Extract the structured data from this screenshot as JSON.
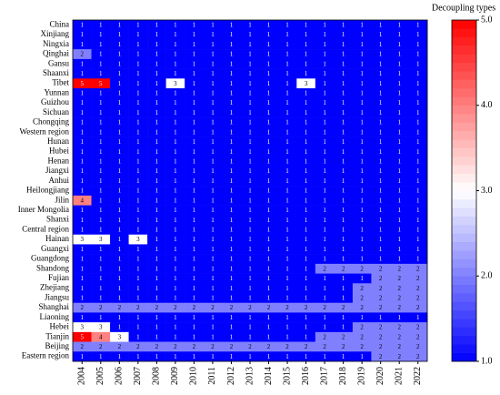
{
  "chart_data": {
    "type": "heatmap",
    "rows": [
      "China",
      "Xinjiang",
      "Ningxia",
      "Qinghai",
      "Gansu",
      "Shaanxi",
      "Tibet",
      "Yunnan",
      "Guizhou",
      "Sichuan",
      "Chongqing",
      "Western region",
      "Hunan",
      "Hubei",
      "Henan",
      "Jiangxi",
      "Anhui",
      "Heilongjiang",
      "Jilin",
      "Inner Mongolia",
      "Shanxi",
      "Central region",
      "Hainan",
      "Guangxi",
      "Guangdong",
      "Shandong",
      "Fujian",
      "Zhejiang",
      "Jiangsu",
      "Shanghai",
      "Liaoning",
      "Hebei",
      "Tianjin",
      "Beijing",
      "Eastern region"
    ],
    "columns": [
      "2004",
      "2005",
      "2006",
      "2007",
      "2008",
      "2009",
      "2010",
      "2011",
      "2012",
      "2013",
      "2014",
      "2015",
      "2016",
      "2017",
      "2018",
      "2019",
      "2020",
      "2021",
      "2022"
    ],
    "values": [
      [
        1,
        1,
        1,
        1,
        1,
        1,
        1,
        1,
        1,
        1,
        1,
        1,
        1,
        1,
        1,
        1,
        1,
        1,
        1
      ],
      [
        1,
        1,
        1,
        1,
        1,
        1,
        1,
        1,
        1,
        1,
        1,
        1,
        1,
        1,
        1,
        1,
        1,
        1,
        1
      ],
      [
        1,
        1,
        1,
        1,
        1,
        1,
        1,
        1,
        1,
        1,
        1,
        1,
        1,
        1,
        1,
        1,
        1,
        1,
        1
      ],
      [
        2,
        1,
        1,
        1,
        1,
        1,
        1,
        1,
        1,
        1,
        1,
        1,
        1,
        1,
        1,
        1,
        1,
        1,
        1
      ],
      [
        1,
        1,
        1,
        1,
        1,
        1,
        1,
        1,
        1,
        1,
        1,
        1,
        1,
        1,
        1,
        1,
        1,
        1,
        1
      ],
      [
        1,
        1,
        1,
        1,
        1,
        1,
        1,
        1,
        1,
        1,
        1,
        1,
        1,
        1,
        1,
        1,
        1,
        1,
        1
      ],
      [
        5,
        5,
        1,
        1,
        1,
        3,
        1,
        1,
        1,
        1,
        1,
        1,
        3,
        1,
        1,
        1,
        1,
        1,
        1
      ],
      [
        1,
        1,
        1,
        1,
        1,
        1,
        1,
        1,
        1,
        1,
        1,
        1,
        1,
        1,
        1,
        1,
        1,
        1,
        1
      ],
      [
        1,
        1,
        1,
        1,
        1,
        1,
        1,
        1,
        1,
        1,
        1,
        1,
        1,
        1,
        1,
        1,
        1,
        1,
        1
      ],
      [
        1,
        1,
        1,
        1,
        1,
        1,
        1,
        1,
        1,
        1,
        1,
        1,
        1,
        1,
        1,
        1,
        1,
        1,
        1
      ],
      [
        1,
        1,
        1,
        1,
        1,
        1,
        1,
        1,
        1,
        1,
        1,
        1,
        1,
        1,
        1,
        1,
        1,
        1,
        1
      ],
      [
        1,
        1,
        1,
        1,
        1,
        1,
        1,
        1,
        1,
        1,
        1,
        1,
        1,
        1,
        1,
        1,
        1,
        1,
        1
      ],
      [
        1,
        1,
        1,
        1,
        1,
        1,
        1,
        1,
        1,
        1,
        1,
        1,
        1,
        1,
        1,
        1,
        1,
        1,
        1
      ],
      [
        1,
        1,
        1,
        1,
        1,
        1,
        1,
        1,
        1,
        1,
        1,
        1,
        1,
        1,
        1,
        1,
        1,
        1,
        1
      ],
      [
        1,
        1,
        1,
        1,
        1,
        1,
        1,
        1,
        1,
        1,
        1,
        1,
        1,
        1,
        1,
        1,
        1,
        1,
        1
      ],
      [
        1,
        1,
        1,
        1,
        1,
        1,
        1,
        1,
        1,
        1,
        1,
        1,
        1,
        1,
        1,
        1,
        1,
        1,
        1
      ],
      [
        1,
        1,
        1,
        1,
        1,
        1,
        1,
        1,
        1,
        1,
        1,
        1,
        1,
        1,
        1,
        1,
        1,
        1,
        1
      ],
      [
        1,
        1,
        1,
        1,
        1,
        1,
        1,
        1,
        1,
        1,
        1,
        1,
        1,
        1,
        1,
        1,
        1,
        1,
        1
      ],
      [
        4,
        1,
        1,
        1,
        1,
        1,
        1,
        1,
        1,
        1,
        1,
        1,
        1,
        1,
        1,
        1,
        1,
        1,
        1
      ],
      [
        1,
        1,
        1,
        1,
        1,
        1,
        1,
        1,
        1,
        1,
        1,
        1,
        1,
        1,
        1,
        1,
        1,
        1,
        1
      ],
      [
        1,
        1,
        1,
        1,
        1,
        1,
        1,
        1,
        1,
        1,
        1,
        1,
        1,
        1,
        1,
        1,
        1,
        1,
        1
      ],
      [
        1,
        1,
        1,
        1,
        1,
        1,
        1,
        1,
        1,
        1,
        1,
        1,
        1,
        1,
        1,
        1,
        1,
        1,
        1
      ],
      [
        3,
        3,
        1,
        3,
        1,
        1,
        1,
        1,
        1,
        1,
        1,
        1,
        1,
        1,
        1,
        1,
        1,
        1,
        1
      ],
      [
        1,
        1,
        1,
        1,
        1,
        1,
        1,
        1,
        1,
        1,
        1,
        1,
        1,
        1,
        1,
        1,
        1,
        1,
        1
      ],
      [
        1,
        1,
        1,
        1,
        1,
        1,
        1,
        1,
        1,
        1,
        1,
        1,
        1,
        1,
        1,
        1,
        1,
        1,
        1
      ],
      [
        1,
        1,
        1,
        1,
        1,
        1,
        1,
        1,
        1,
        1,
        1,
        1,
        1,
        2,
        2,
        2,
        2,
        2,
        2
      ],
      [
        1,
        1,
        1,
        1,
        1,
        1,
        1,
        1,
        1,
        1,
        1,
        1,
        1,
        1,
        1,
        1,
        2,
        2,
        2
      ],
      [
        1,
        1,
        1,
        1,
        1,
        1,
        1,
        1,
        1,
        1,
        1,
        1,
        1,
        1,
        1,
        2,
        2,
        2,
        2
      ],
      [
        1,
        1,
        1,
        1,
        1,
        1,
        1,
        1,
        1,
        1,
        1,
        1,
        1,
        1,
        1,
        2,
        2,
        2,
        2
      ],
      [
        2,
        2,
        2,
        2,
        2,
        2,
        2,
        2,
        2,
        2,
        2,
        2,
        2,
        2,
        2,
        2,
        2,
        2,
        2
      ],
      [
        1,
        1,
        1,
        1,
        1,
        1,
        1,
        1,
        1,
        1,
        1,
        1,
        1,
        1,
        1,
        1,
        1,
        1,
        1
      ],
      [
        3,
        3,
        1,
        1,
        1,
        1,
        1,
        1,
        1,
        1,
        1,
        1,
        1,
        1,
        1,
        2,
        2,
        2,
        2
      ],
      [
        5,
        4,
        3,
        1,
        1,
        1,
        1,
        1,
        1,
        1,
        1,
        1,
        1,
        2,
        2,
        2,
        2,
        2,
        2
      ],
      [
        2,
        2,
        2,
        2,
        2,
        2,
        2,
        2,
        2,
        2,
        2,
        2,
        2,
        2,
        2,
        2,
        2,
        2,
        2
      ],
      [
        1,
        1,
        1,
        1,
        1,
        1,
        1,
        1,
        1,
        1,
        1,
        1,
        1,
        1,
        1,
        1,
        2,
        2,
        2
      ]
    ],
    "cmap": [
      "#0000ff",
      "#ffffff",
      "#ff0000"
    ],
    "colorbar": {
      "title": "Decoupling types",
      "lim": [
        1,
        5
      ],
      "ticks": [
        {
          "value": 1,
          "label": "1.0"
        },
        {
          "value": 2,
          "label": "2.0"
        },
        {
          "value": 3,
          "label": "3.0"
        },
        {
          "value": 4,
          "label": "4.0"
        },
        {
          "value": 5,
          "label": "5.0"
        }
      ]
    }
  }
}
